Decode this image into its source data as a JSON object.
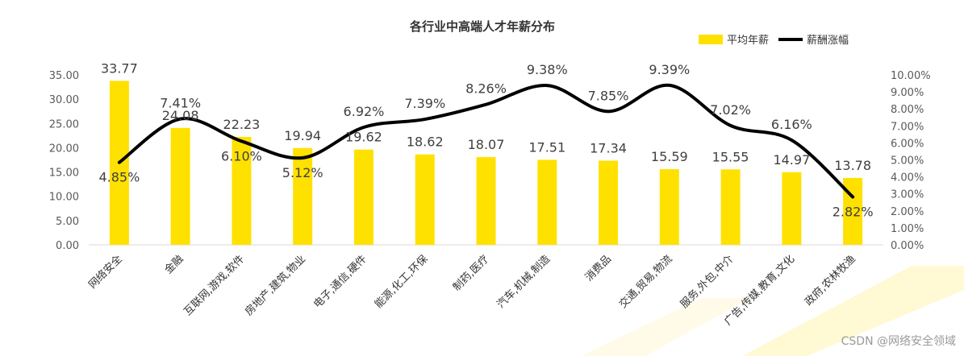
{
  "chart_data": {
    "type": "bar+line",
    "title": "各行业中高端人才年薪分布",
    "categories": [
      "网络安全",
      "金融",
      "互联网,游戏,软件",
      "房地产,建筑,物业",
      "电子,通信,硬件",
      "能源,化工,环保",
      "制药,医疗",
      "汽车,机械,制造",
      "消费品",
      "交通,贸易,物流",
      "服务,外包,中介",
      "广告,传媒,教育,文化",
      "政府,农林牧渔"
    ],
    "series": [
      {
        "name": "平均年薪",
        "type": "bar",
        "axis": "left",
        "color": "#FFE100",
        "values": [
          33.77,
          24.08,
          22.23,
          19.94,
          19.62,
          18.62,
          18.07,
          17.51,
          17.34,
          15.59,
          15.55,
          14.97,
          13.78
        ],
        "labels": [
          "33.77",
          "24.08",
          "22.23",
          "19.94",
          "19.62",
          "18.62",
          "18.07",
          "17.51",
          "17.34",
          "15.59",
          "15.55",
          "14.97",
          "13.78"
        ]
      },
      {
        "name": "薪酬涨幅",
        "type": "line",
        "axis": "right",
        "color": "#000000",
        "values": [
          4.85,
          7.41,
          6.1,
          5.12,
          6.92,
          7.39,
          8.26,
          9.38,
          7.85,
          9.39,
          7.02,
          6.16,
          2.82
        ],
        "labels": [
          "4.85%",
          "7.41%",
          "6.10%",
          "5.12%",
          "6.92%",
          "7.39%",
          "8.26%",
          "9.38%",
          "7.85%",
          "9.39%",
          "7.02%",
          "6.16%",
          "2.82%"
        ]
      }
    ],
    "y_left": {
      "min": 0,
      "max": 35,
      "ticks": [
        "0.00",
        "5.00",
        "10.00",
        "15.00",
        "20.00",
        "25.00",
        "30.00",
        "35.00"
      ]
    },
    "y_right": {
      "min": 0,
      "max": 10,
      "ticks": [
        "0.00%",
        "1.00%",
        "2.00%",
        "3.00%",
        "4.00%",
        "5.00%",
        "6.00%",
        "7.00%",
        "8.00%",
        "9.00%",
        "10.00%"
      ]
    },
    "legend_position": "top-right",
    "grid": false
  },
  "watermark": "CSDN @网络安全领域"
}
